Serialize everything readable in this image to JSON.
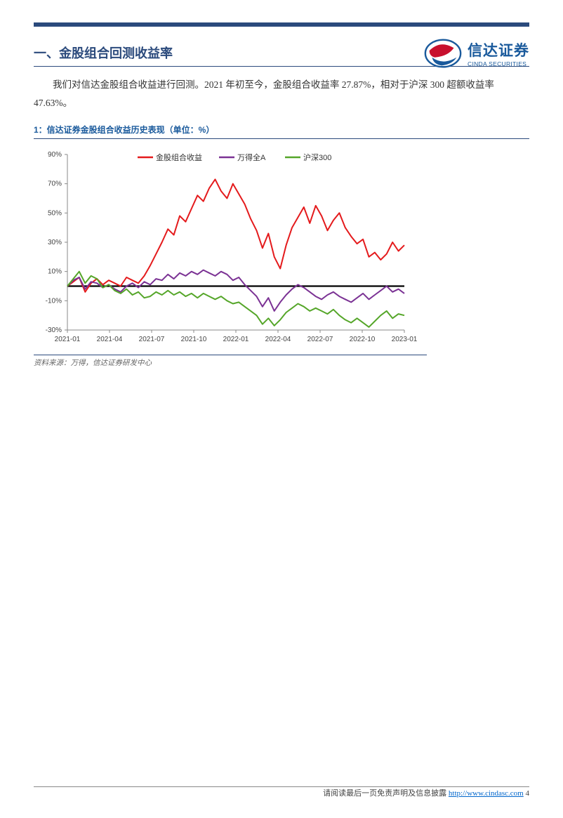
{
  "logo": {
    "cn": "信达证券",
    "en": "CINDA SECURITIES"
  },
  "section": {
    "title": "一、金股组合回测收益率",
    "para_line1": "我们对信达金股组合收益进行回测。2021 年初至今，金股组合收益率 27.87%，相对于沪深 300 超额收益率",
    "para_line2": "47.63%。"
  },
  "chart": {
    "caption": "1：信达证券金股组合收益历史表现（单位：%）",
    "type": "line",
    "ylim": [
      -30,
      90
    ],
    "ytick_step": 20,
    "yticks": [
      "-30%",
      "-10%",
      "10%",
      "30%",
      "50%",
      "70%",
      "90%"
    ],
    "xticks": [
      "2021-01",
      "2021-04",
      "2021-07",
      "2021-10",
      "2022-01",
      "2022-04",
      "2022-07",
      "2022-10",
      "2023-01"
    ],
    "background_color": "#ffffff",
    "axis_color": "#888888",
    "axis_fontsize": 10,
    "line_width": 2,
    "legend_fontsize": 11,
    "series": [
      {
        "name": "金股组合收益",
        "color": "#e41a1c",
        "values": [
          0,
          3,
          6,
          -4,
          2,
          5,
          1,
          4,
          2,
          0,
          6,
          4,
          2,
          7,
          14,
          22,
          30,
          39,
          35,
          48,
          44,
          53,
          62,
          58,
          67,
          73,
          65,
          60,
          70,
          63,
          56,
          46,
          38,
          26,
          36,
          20,
          12,
          28,
          40,
          47,
          54,
          43,
          55,
          48,
          38,
          45,
          50,
          40,
          34,
          29,
          32,
          20,
          23,
          18,
          22,
          30,
          24,
          28
        ]
      },
      {
        "name": "万得全A",
        "color": "#7b3294",
        "values": [
          0,
          4,
          6,
          -2,
          3,
          2,
          -1,
          1,
          -2,
          -4,
          0,
          2,
          -1,
          3,
          1,
          5,
          4,
          8,
          5,
          9,
          7,
          10,
          8,
          11,
          9,
          7,
          10,
          8,
          4,
          6,
          1,
          -3,
          -7,
          -14,
          -8,
          -17,
          -11,
          -6,
          -2,
          1,
          -1,
          -4,
          -7,
          -9,
          -6,
          -4,
          -7,
          -9,
          -11,
          -8,
          -5,
          -9,
          -6,
          -3,
          0,
          -4,
          -2,
          -5
        ]
      },
      {
        "name": "沪深300",
        "color": "#55a629",
        "values": [
          0,
          5,
          10,
          2,
          7,
          5,
          -1,
          1,
          -3,
          -5,
          -2,
          -6,
          -4,
          -8,
          -7,
          -4,
          -6,
          -3,
          -6,
          -4,
          -7,
          -5,
          -8,
          -5,
          -7,
          -9,
          -7,
          -10,
          -12,
          -11,
          -14,
          -17,
          -20,
          -26,
          -22,
          -27,
          -23,
          -18,
          -15,
          -12,
          -14,
          -17,
          -15,
          -17,
          -19,
          -16,
          -20,
          -23,
          -25,
          -22,
          -25,
          -28,
          -24,
          -20,
          -17,
          -22,
          -19,
          -20
        ]
      }
    ],
    "source": "资料来源：万得，信达证券研发中心"
  },
  "footer": {
    "text_pre": "请阅读最后一页免责声明及信息披露 ",
    "url": "http://www.cindasc.com",
    "page": " 4"
  }
}
